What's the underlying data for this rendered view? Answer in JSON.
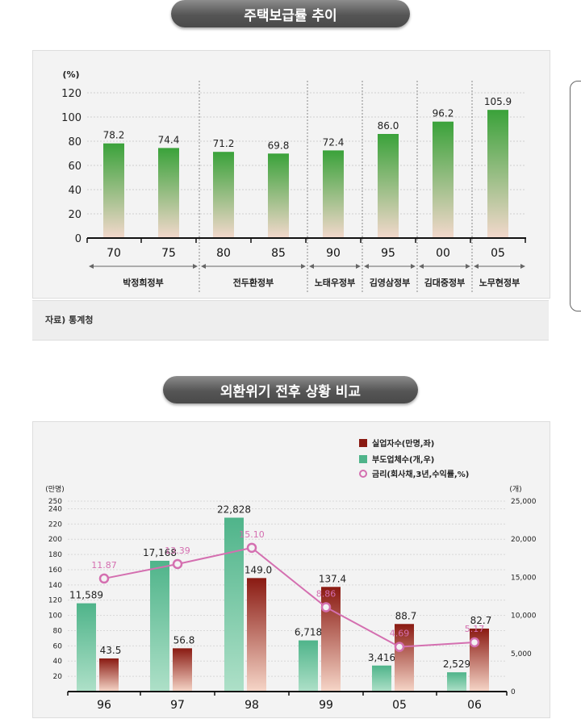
{
  "chart1": {
    "title": "주택보급률 추이",
    "unit": "(%)",
    "source": "자료) 통계청",
    "y_ticks": [
      "0",
      "20",
      "40",
      "60",
      "80",
      "100",
      "120"
    ],
    "ylim": [
      0,
      120
    ],
    "chart_data": {
      "type": "bar",
      "categories": [
        "70",
        "75",
        "80",
        "85",
        "90",
        "95",
        "00",
        "05"
      ],
      "values": [
        78.2,
        74.4,
        71.2,
        69.8,
        72.4,
        86.0,
        96.2,
        105.9
      ],
      "value_labels": [
        "78.2",
        "74.4",
        "71.2",
        "69.8",
        "72.4",
        "86.0",
        "96.2",
        "105.9"
      ],
      "ylabel": "(%)",
      "ylim": [
        0,
        120
      ]
    },
    "governments": [
      "박정희정부",
      "전두환정부",
      "노태우정부",
      "김영삼정부",
      "김대중정부",
      "노무현정부"
    ],
    "colors": {
      "bar_top": "#3aa23a",
      "bar_bottom": "#f3d8cc"
    }
  },
  "chart2": {
    "title": "외환위기 전후 상황 비교",
    "left_unit": "(만명)",
    "right_unit": "(개)",
    "left_ticks": [
      "20",
      "40",
      "60",
      "80",
      "100",
      "120",
      "140",
      "160",
      "180",
      "200",
      "220",
      "240",
      "250"
    ],
    "right_ticks": [
      "0",
      "5,000",
      "10,000",
      "15,000",
      "20,000",
      "25,000"
    ],
    "legend": [
      "실업자수(만명,좌)",
      "부도업체수(개,우)",
      "금리(회사채,3년,수익률,%)"
    ],
    "chart_data": {
      "type": "bar",
      "categories": [
        "96",
        "97",
        "98",
        "99",
        "05",
        "06"
      ],
      "series": [
        {
          "name": "실업자수(만명,좌)",
          "axis": "left",
          "values": [
            43.5,
            56.8,
            149.0,
            137.4,
            88.7,
            82.7
          ],
          "labels": [
            "43.5",
            "56.8",
            "149.0",
            "137.4",
            "88.7",
            "82.7"
          ]
        },
        {
          "name": "부도업체수(개,우)",
          "axis": "right",
          "values": [
            11589,
            17168,
            22828,
            6718,
            3416,
            2529
          ],
          "labels": [
            "11,589",
            "17,168",
            "22,828",
            "6,718",
            "3,416",
            "2,529"
          ]
        },
        {
          "name": "금리(회사채,3년,수익률,%)",
          "type": "line",
          "values": [
            11.87,
            13.39,
            15.1,
            8.86,
            4.69,
            5.17
          ],
          "labels": [
            "11.87",
            "13.39",
            "15.10",
            "8.86",
            "4.69",
            "5.17"
          ]
        }
      ],
      "ylim_left": [
        0,
        250
      ],
      "ylim_right": [
        0,
        25000
      ]
    },
    "colors": {
      "unemployed_top": "#8a1a12",
      "unemployed_bottom": "#f6d6c8",
      "bankrupt_top": "#4fb48a",
      "bankrupt_bottom": "#aee0c8",
      "rate": "#d46fb0"
    }
  }
}
